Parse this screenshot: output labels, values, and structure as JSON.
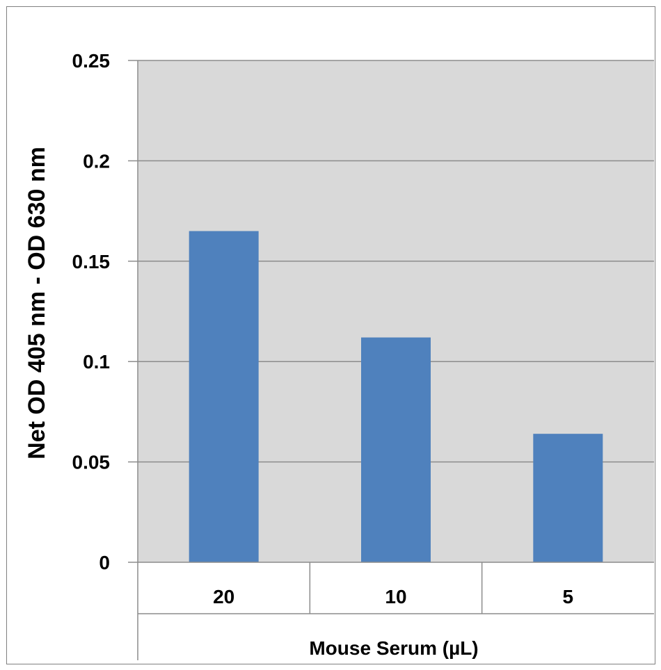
{
  "chart_data": {
    "type": "bar",
    "categories": [
      "20",
      "10",
      "5"
    ],
    "values": [
      0.165,
      0.112,
      0.064
    ],
    "ylabel": "Net OD 405 nm - OD 630 nm",
    "xlabel": "Mouse Serum (µL)",
    "ylim": [
      0,
      0.25
    ],
    "yticks": [
      "0",
      "0.05",
      "0.1",
      "0.15",
      "0.2",
      "0.25"
    ],
    "ytick_values": [
      0,
      0.05,
      0.1,
      0.15,
      0.2,
      0.25
    ],
    "grid": true,
    "legend": "none",
    "colors": {
      "bar": "#4f81bd",
      "plot_background": "#d9d9d9",
      "gridline": "#8c8c8c",
      "axis": "#8c8c8c"
    }
  }
}
